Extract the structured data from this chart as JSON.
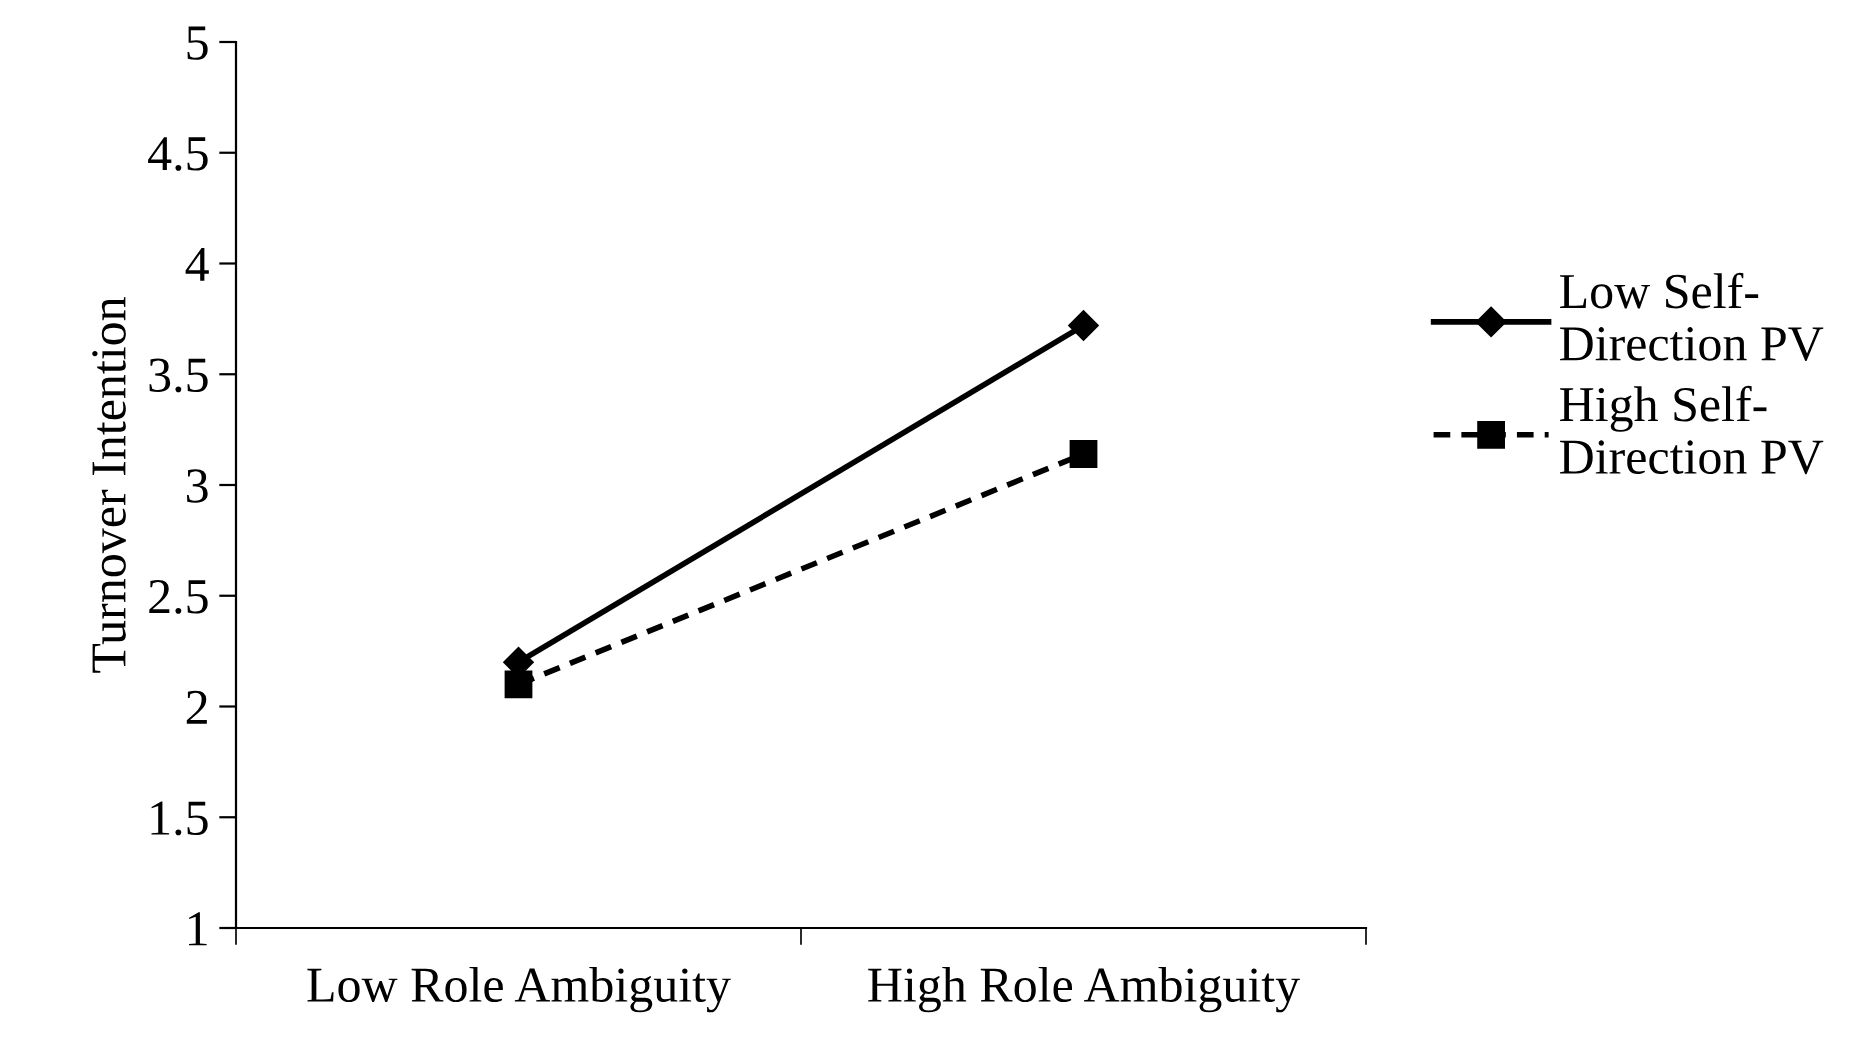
{
  "chart_data": {
    "type": "line",
    "ylabel": "Turnover Intention",
    "categories": [
      "Low Role Ambiguity",
      "High Role Ambiguity"
    ],
    "series": [
      {
        "name": "Low Self-\nDirection PV",
        "color": "#000000",
        "values": [
          2.2,
          3.72
        ],
        "marker": "diamond",
        "line_style": "solid"
      },
      {
        "name": "High Self-\nDirection PV",
        "color": "#000000",
        "values": [
          2.1,
          3.14
        ],
        "marker": "square",
        "line_style": "dashed"
      }
    ],
    "ylim": [
      1,
      5
    ],
    "yticks": [
      1,
      1.5,
      2,
      2.5,
      3,
      3.5,
      4,
      4.5,
      5
    ],
    "grid": false,
    "legend": "right"
  }
}
